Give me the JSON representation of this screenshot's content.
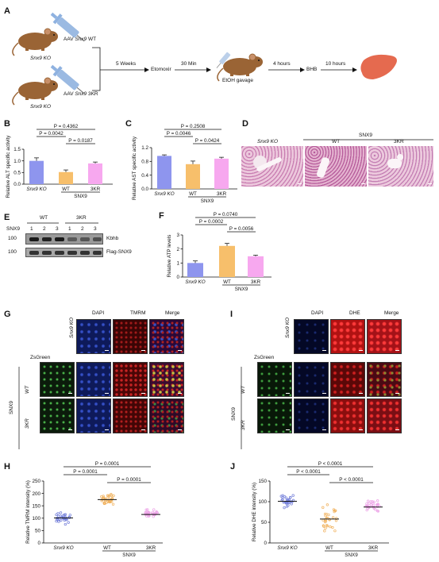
{
  "panel_letters": {
    "a": "A",
    "b": "B",
    "c": "C",
    "d": "D",
    "e": "E",
    "f": "F",
    "g": "G",
    "h": "H",
    "i": "I",
    "j": "J"
  },
  "panel_a": {
    "mouse1_label": "Snx9 KO",
    "aav_wt_prefix": "AAV",
    "aav_wt_gene": "Snx9",
    "aav_wt_suffix": "WT",
    "mouse2_label": "Snx9 KO",
    "aav_3kr_prefix": "AAV",
    "aav_3kr_gene": "Snx9",
    "aav_3kr_suffix": "3KR",
    "step1_label": "5 Weeks",
    "step1_target": "Etomoxir",
    "step2_label": "30 Min",
    "step2_target": "EtOH gavage",
    "step3_label": "4 hours",
    "step3_target": "BHB",
    "step4_label": "10 hours",
    "colors": {
      "mouse": "#9a6435",
      "syringe": "#7aa3d8",
      "liver": "#e56a4f"
    }
  },
  "groups": [
    "Snx9 KO",
    "WT",
    "3KR"
  ],
  "group_parent": "SNX9",
  "colors": {
    "ko": "#8e95ee",
    "wt": "#f7bf6b",
    "kr": "#f7a8ef",
    "dot_ko": "#6f7bd8",
    "dot_wt": "#f0b05a",
    "dot_kr": "#ec9fe6",
    "dapi": "#1f2e9a",
    "red": "#c21c1c",
    "zsgreen": "#3aa83a"
  },
  "chart_data": [
    {
      "id": "B",
      "type": "bar",
      "categories": [
        "Snx9 KO",
        "WT",
        "3KR"
      ],
      "values": [
        1.0,
        0.52,
        0.89
      ],
      "errors": [
        0.13,
        0.09,
        0.06
      ],
      "ylabel": "Relative ALT specific activity",
      "ylim": [
        0,
        1.5
      ],
      "yticks": [
        "0.0",
        "0.5",
        "1.0",
        "1.5"
      ],
      "tick_values": [
        0,
        0.5,
        1.0,
        1.5
      ],
      "comparisons": [
        {
          "from": 0,
          "to": 2,
          "label": "P = 0.4362"
        },
        {
          "from": 0,
          "to": 1,
          "label": "P = 0.0042"
        },
        {
          "from": 1,
          "to": 2,
          "label": "P = 0.0187"
        }
      ]
    },
    {
      "id": "C",
      "type": "bar",
      "categories": [
        "Snx9 KO",
        "WT",
        "3KR"
      ],
      "values": [
        0.96,
        0.72,
        0.88
      ],
      "errors": [
        0.03,
        0.09,
        0.04
      ],
      "ylabel": "Relative AST specific activity",
      "ylim": [
        0,
        1.2
      ],
      "yticks": [
        "0.0",
        "0.4",
        "0.8",
        "1.2"
      ],
      "tick_values": [
        0,
        0.4,
        0.8,
        1.2
      ],
      "comparisons": [
        {
          "from": 0,
          "to": 2,
          "label": "P = 0.2508"
        },
        {
          "from": 0,
          "to": 1,
          "label": "P = 0.0046"
        },
        {
          "from": 1,
          "to": 2,
          "label": "P = 0.0424"
        }
      ]
    },
    {
      "id": "F",
      "type": "bar",
      "categories": [
        "Snx9 KO",
        "WT",
        "3KR"
      ],
      "values": [
        1.0,
        2.22,
        1.48
      ],
      "errors": [
        0.15,
        0.18,
        0.08
      ],
      "ylabel": "Relative ATP levels",
      "ylim": [
        0,
        3
      ],
      "yticks": [
        "0",
        "1",
        "2",
        "3"
      ],
      "tick_values": [
        0,
        1,
        2,
        3
      ],
      "comparisons": [
        {
          "from": 0,
          "to": 2,
          "label": "P = 0.0740"
        },
        {
          "from": 0,
          "to": 1,
          "label": "P = 0.0002"
        },
        {
          "from": 1,
          "to": 2,
          "label": "P = 0.0056"
        }
      ]
    },
    {
      "id": "H",
      "type": "scatter",
      "categories": [
        "Snx9 KO",
        "WT",
        "3KR"
      ],
      "means": [
        101,
        175,
        115
      ],
      "ranges": [
        [
          68,
          132
        ],
        [
          140,
          215
        ],
        [
          98,
          140
        ]
      ],
      "points": 30,
      "ylabel": "Relative TMRM intensity (%)",
      "ylim": [
        0,
        250
      ],
      "yticks": [
        "0",
        "50",
        "100",
        "150",
        "200",
        "250"
      ],
      "tick_values": [
        0,
        50,
        100,
        150,
        200,
        250
      ],
      "comparisons": [
        {
          "from": 0,
          "to": 2,
          "label": "P = 0.0001"
        },
        {
          "from": 0,
          "to": 1,
          "label": "P = 0.0001"
        },
        {
          "from": 1,
          "to": 2,
          "label": "P = 0.0001"
        }
      ]
    },
    {
      "id": "J",
      "type": "scatter",
      "categories": [
        "Snx9 KO",
        "WT",
        "3KR"
      ],
      "means": [
        101,
        58,
        87
      ],
      "ranges": [
        [
          80,
          125
        ],
        [
          15,
          100
        ],
        [
          65,
          112
        ]
      ],
      "points": 30,
      "ylabel": "Relative DHE intensity (%)",
      "ylim": [
        0,
        150
      ],
      "yticks": [
        "0",
        "50",
        "100",
        "150"
      ],
      "tick_values": [
        0,
        50,
        100,
        150
      ],
      "comparisons": [
        {
          "from": 0,
          "to": 2,
          "label": "P < 0.0001"
        },
        {
          "from": 0,
          "to": 1,
          "label": "P < 0.0001"
        },
        {
          "from": 1,
          "to": 2,
          "label": "P < 0.0001"
        }
      ]
    }
  ],
  "panel_d": {
    "top_label": "SNX9",
    "col1": "Snx9 KO",
    "col2": "WT",
    "col3": "3KR"
  },
  "panel_e": {
    "wt_label": "WT",
    "kr_label": "3KR",
    "lane_header": "SNX9",
    "lanes": [
      "1",
      "2",
      "3",
      "1",
      "2",
      "3"
    ],
    "mw1": "100",
    "mw2": "100",
    "band1": "Kbhb",
    "band2": "Flag-SNX9"
  },
  "panel_g": {
    "col_dapi": "DAPI",
    "col_tmrm": "TMRM",
    "col_merge": "Merge",
    "row_ko": "Snx9 KO",
    "zsgreen": "ZsGreen",
    "row_wt": "WT",
    "row_kr": "3KR",
    "side": "SNX9"
  },
  "panel_i": {
    "col_dapi": "DAPI",
    "col_dhe": "DHE",
    "col_merge": "Merge",
    "row_ko": "Snx9 KO",
    "zsgreen": "ZsGreen",
    "row_wt": "WT",
    "row_kr": "3KR",
    "side": "SNX9"
  }
}
